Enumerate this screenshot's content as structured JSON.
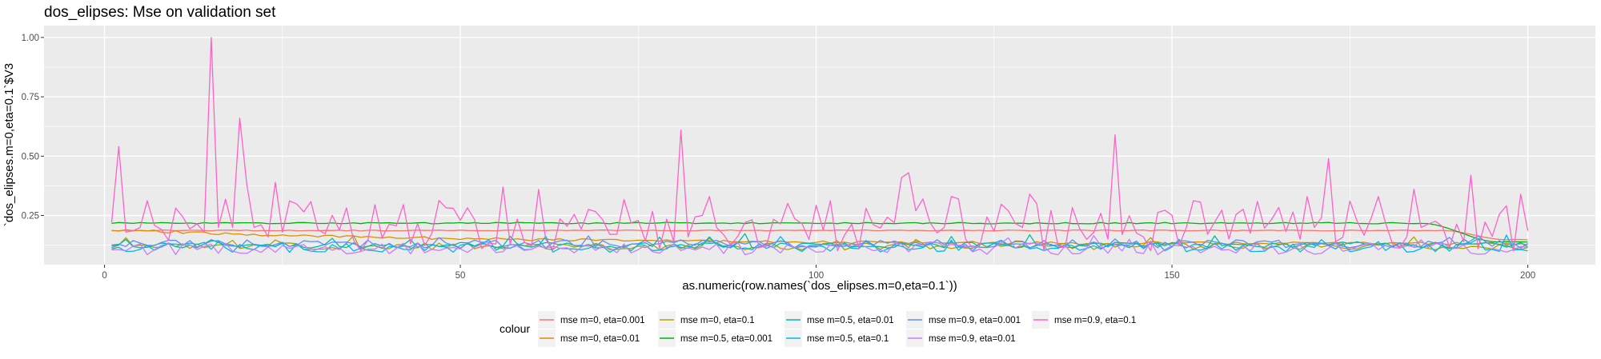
{
  "chart_data": {
    "type": "line",
    "title": "dos_elipses: Mse on validation set",
    "xlabel": "as.numeric(row.names(`dos_elipses.m=0,eta=0.1`))",
    "ylabel": "`dos_elipses.m=0,eta=0.1`$V3",
    "xlim": [
      -8.5,
      209.5
    ],
    "ylim": [
      0.043,
      1.05
    ],
    "x_ticks": [
      0,
      50,
      100,
      150,
      200
    ],
    "x_tick_labels": [
      "0",
      "50",
      "100",
      "150",
      "200"
    ],
    "y_ticks": [
      0.25,
      0.5,
      0.75,
      1.0
    ],
    "y_tick_labels": [
      "0.25",
      "0.50",
      "0.75",
      "1.00"
    ],
    "grid": true,
    "legend": {
      "title": "colour",
      "position": "bottom",
      "columns": 5
    },
    "x_domain": [
      1,
      200
    ],
    "series": [
      {
        "name": "mse m=0, eta=0.001",
        "color": "#F8766D",
        "shape": "plateau",
        "level": 0.187,
        "wiggle": 0.002,
        "drop_start": 188,
        "drop_end": 197,
        "end_level": 0.148,
        "seed": 1
      },
      {
        "name": "mse m=0, eta=0.01",
        "color": "#DB8E00",
        "shape": "decay",
        "start": 0.19,
        "end": 0.13,
        "rate": 0.02,
        "noise": 0.006,
        "seed": 2
      },
      {
        "name": "mse m=0, eta=0.1",
        "color": "#AEA200",
        "shape": "noisy",
        "base": 0.12,
        "noise": 0.015,
        "seed": 3
      },
      {
        "name": "mse m=0.5, eta=0.001",
        "color": "#00B10A",
        "shape": "plateau",
        "level": 0.218,
        "wiggle": 0.003,
        "drop_start": 185,
        "drop_end": 196,
        "end_level": 0.138,
        "seed": 4
      },
      {
        "name": "mse m=0.5, eta=0.01",
        "color": "#00BE9C",
        "shape": "noisy",
        "base": 0.125,
        "noise": 0.012,
        "seed": 5
      },
      {
        "name": "mse m=0.5, eta=0.1",
        "color": "#00B7E8",
        "shape": "noisy",
        "base": 0.115,
        "noise": 0.02,
        "seed": 6
      },
      {
        "name": "mse m=0.9, eta=0.001",
        "color": "#5C8DFF",
        "shape": "noisy",
        "base": 0.13,
        "noise": 0.018,
        "seed": 7
      },
      {
        "name": "mse m=0.9, eta=0.01",
        "color": "#C77CFF",
        "shape": "noisy",
        "base": 0.11,
        "noise": 0.025,
        "seed": 8
      },
      {
        "name": "mse m=0.9, eta=0.1",
        "color": "#FF61C9",
        "shape": "spiky",
        "seed": 9,
        "points": [
          [
            1,
            0.22
          ],
          [
            2,
            0.54
          ],
          [
            3,
            0.18
          ],
          [
            14,
            0.18
          ],
          [
            15,
            1.0
          ],
          [
            16,
            0.2
          ],
          [
            18,
            0.2
          ],
          [
            19,
            0.66
          ],
          [
            20,
            0.38
          ],
          [
            21,
            0.2
          ],
          [
            23,
            0.16
          ],
          [
            24,
            0.39
          ],
          [
            25,
            0.18
          ],
          [
            55,
            0.13
          ],
          [
            56,
            0.37
          ],
          [
            57,
            0.13
          ],
          [
            60,
            0.12
          ],
          [
            61,
            0.36
          ],
          [
            62,
            0.15
          ],
          [
            80,
            0.14
          ],
          [
            81,
            0.61
          ],
          [
            82,
            0.16
          ],
          [
            84,
            0.25
          ],
          [
            85,
            0.33
          ],
          [
            86,
            0.2
          ],
          [
            111,
            0.22
          ],
          [
            112,
            0.41
          ],
          [
            113,
            0.43
          ],
          [
            114,
            0.27
          ],
          [
            115,
            0.32
          ],
          [
            116,
            0.22
          ],
          [
            118,
            0.2
          ],
          [
            119,
            0.33
          ],
          [
            120,
            0.32
          ],
          [
            121,
            0.15
          ],
          [
            129,
            0.2
          ],
          [
            130,
            0.34
          ],
          [
            131,
            0.3
          ],
          [
            141,
            0.15
          ],
          [
            142,
            0.59
          ],
          [
            143,
            0.17
          ],
          [
            168,
            0.15
          ],
          [
            169,
            0.33
          ],
          [
            170,
            0.2
          ],
          [
            171,
            0.24
          ],
          [
            172,
            0.49
          ],
          [
            173,
            0.14
          ],
          [
            178,
            0.24
          ],
          [
            179,
            0.33
          ],
          [
            180,
            0.22
          ],
          [
            183,
            0.16
          ],
          [
            184,
            0.36
          ],
          [
            185,
            0.2
          ],
          [
            191,
            0.14
          ],
          [
            192,
            0.42
          ],
          [
            193,
            0.11
          ],
          [
            198,
            0.1
          ],
          [
            199,
            0.34
          ]
        ]
      }
    ]
  }
}
